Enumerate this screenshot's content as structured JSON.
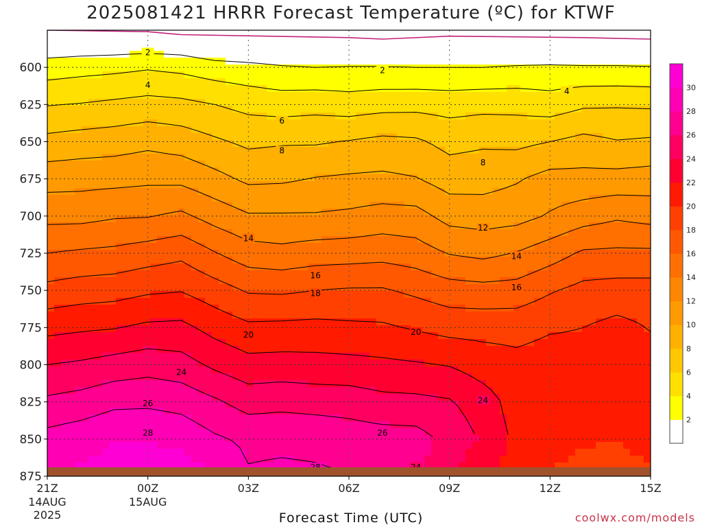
{
  "title": "2025081421 HRRR Forecast Temperature (ºC) for KTWF",
  "x_axis_title": "Forecast Time (UTC)",
  "credit": "coolwx.com/models",
  "chart_data": {
    "type": "contour",
    "variable": "Temperature (ºC)",
    "y_scale": "pressure (hPa), inverted",
    "ylim": [
      875,
      575
    ],
    "y_ticks": [
      600,
      625,
      650,
      675,
      700,
      725,
      750,
      775,
      800,
      825,
      850,
      875
    ],
    "x_ticks": [
      {
        "label": "21Z",
        "sub": [
          "14AUG",
          "2025"
        ]
      },
      {
        "label": "00Z",
        "sub": [
          "15AUG"
        ]
      },
      {
        "label": "03Z",
        "sub": []
      },
      {
        "label": "06Z",
        "sub": []
      },
      {
        "label": "09Z",
        "sub": []
      },
      {
        "label": "12Z",
        "sub": []
      },
      {
        "label": "15Z",
        "sub": []
      }
    ],
    "x_hours": [
      0,
      1,
      2,
      3,
      4,
      5,
      6,
      7,
      8,
      9,
      10,
      11,
      12,
      13,
      14,
      15,
      16,
      17,
      18
    ],
    "contour_levels": [
      2,
      4,
      6,
      8,
      10,
      12,
      14,
      16,
      18,
      20,
      22,
      24,
      26,
      28
    ],
    "contour_labels": [
      {
        "level": 2,
        "hour": 3,
        "p": 590
      },
      {
        "level": 2,
        "hour": 10,
        "p": 602
      },
      {
        "level": 4,
        "hour": 3,
        "p": 612
      },
      {
        "level": 4,
        "hour": 15.5,
        "p": 616
      },
      {
        "level": 6,
        "hour": 7,
        "p": 636
      },
      {
        "level": 8,
        "hour": 7,
        "p": 656
      },
      {
        "level": 8,
        "hour": 13,
        "p": 664
      },
      {
        "level": 12,
        "hour": 13,
        "p": 708
      },
      {
        "level": 14,
        "hour": 6,
        "p": 715
      },
      {
        "level": 14,
        "hour": 14,
        "p": 727
      },
      {
        "level": 16,
        "hour": 8,
        "p": 740
      },
      {
        "level": 16,
        "hour": 14,
        "p": 748
      },
      {
        "level": 18,
        "hour": 8,
        "p": 752
      },
      {
        "level": 20,
        "hour": 6,
        "p": 780
      },
      {
        "level": 20,
        "hour": 11,
        "p": 778
      },
      {
        "level": 24,
        "hour": 4,
        "p": 805
      },
      {
        "level": 24,
        "hour": 13,
        "p": 824
      },
      {
        "level": 26,
        "hour": 3,
        "p": 826
      },
      {
        "level": 26,
        "hour": 10,
        "p": 846
      },
      {
        "level": 28,
        "hour": 3,
        "p": 846
      },
      {
        "level": 28,
        "hour": 8,
        "p": 869
      },
      {
        "level": 24,
        "hour": 11,
        "p": 869
      }
    ],
    "temperature_grid_hours": [
      0,
      1,
      2,
      3,
      4,
      5,
      6,
      7,
      8,
      9,
      10,
      11,
      12,
      13,
      14,
      15,
      16,
      17,
      18
    ],
    "temperature_grid_pressures": [
      575,
      600,
      625,
      650,
      675,
      700,
      725,
      750,
      775,
      800,
      825,
      850,
      875
    ],
    "temperature_grid": [
      [
        -1,
        -1,
        -1,
        -1,
        -1,
        -2,
        -2,
        -2,
        -2,
        -2,
        -2,
        -2,
        -2,
        -2,
        -2,
        -2,
        -2,
        -2,
        -2
      ],
      [
        3.0,
        3.3,
        3.5,
        3.8,
        3.5,
        2.9,
        2.6,
        2.2,
        2.0,
        2.1,
        2.1,
        2.0,
        2.0,
        2.0,
        2.2,
        2.3,
        2.2,
        2.2,
        2.1
      ],
      [
        5.9,
        6.1,
        6.4,
        6.7,
        6.5,
        6.0,
        5.4,
        5.1,
        5.3,
        5.0,
        5.3,
        5.4,
        5.2,
        5.4,
        5.4,
        5.0,
        5.7,
        5.8,
        5.7
      ],
      [
        8.6,
        8.9,
        9.1,
        9.5,
        9.1,
        8.3,
        7.6,
        7.8,
        7.8,
        8.1,
        8.5,
        8.3,
        7.4,
        7.7,
        7.5,
        8.0,
        8.6,
        8.1,
        8.3
      ],
      [
        11.2,
        11.3,
        11.4,
        11.6,
        11.5,
        10.6,
        9.6,
        9.7,
        10.1,
        10.3,
        10.4,
        10.1,
        9.1,
        9.2,
        9.8,
        10.7,
        10.6,
        10.7,
        10.9
      ],
      [
        13.4,
        13.4,
        13.8,
        13.9,
        14.4,
        13.2,
        12.2,
        12.2,
        12.2,
        12.4,
        12.8,
        12.7,
        11.3,
        11.1,
        11.3,
        12.2,
        13.1,
        13.7,
        13.3
      ],
      [
        16.0,
        16.3,
        16.5,
        17.0,
        17.5,
        16.1,
        14.9,
        14.6,
        15.0,
        15.1,
        15.3,
        14.9,
        13.9,
        13.5,
        14.1,
        15.1,
        16.3,
        16.4,
        16.4
      ],
      [
        18.6,
        19.0,
        19.2,
        19.7,
        19.9,
        18.9,
        17.8,
        17.7,
        18.0,
        18.2,
        18.2,
        17.6,
        16.9,
        16.7,
        16.8,
        17.8,
        18.6,
        18.8,
        18.8
      ],
      [
        21.4,
        21.7,
        21.9,
        22.4,
        22.5,
        21.3,
        20.4,
        20.5,
        20.6,
        20.4,
        20.3,
        19.8,
        19.3,
        19.3,
        19.3,
        19.8,
        20.0,
        20.6,
        19.9
      ],
      [
        24.0,
        24.3,
        24.8,
        25.2,
        24.8,
        23.6,
        22.7,
        22.8,
        22.7,
        22.6,
        22.4,
        22.2,
        21.9,
        21.1,
        20.6,
        20.9,
        20.7,
        20.9,
        20.8
      ],
      [
        26.4,
        26.8,
        27.5,
        27.6,
        27.3,
        26.3,
        25.2,
        25.4,
        25.2,
        25.1,
        24.6,
        24.5,
        24.2,
        22.9,
        21.2,
        20.8,
        20.1,
        20.3,
        20.4
      ],
      [
        28.7,
        29.2,
        29.9,
        29.9,
        29.4,
        28.3,
        27.6,
        27.6,
        27.5,
        27.1,
        26.9,
        26.8,
        25.4,
        23.7,
        21.5,
        21.0,
        20.2,
        20.1,
        20.8
      ],
      [
        30.1,
        30.4,
        30.8,
        31.0,
        31.2,
        30.3,
        28.2,
        28.4,
        28.3,
        28.1,
        27.8,
        26.3,
        24.4,
        22.4,
        20.8,
        19.8,
        19.2,
        19.1,
        19.6
      ]
    ],
    "colorbar": {
      "ticks": [
        2,
        4,
        6,
        8,
        10,
        12,
        14,
        16,
        18,
        20,
        22,
        24,
        26,
        28,
        30
      ],
      "colors": [
        "#ffffff",
        "#ffff00",
        "#ffe000",
        "#ffc800",
        "#ffb000",
        "#ff9a00",
        "#ff8600",
        "#ff7000",
        "#ff5800",
        "#ff4000",
        "#ff1a00",
        "#ff0030",
        "#ff0060",
        "#ff0090",
        "#ff00b4",
        "#ff00d4"
      ]
    },
    "ground": {
      "color": "#a0522d"
    }
  }
}
